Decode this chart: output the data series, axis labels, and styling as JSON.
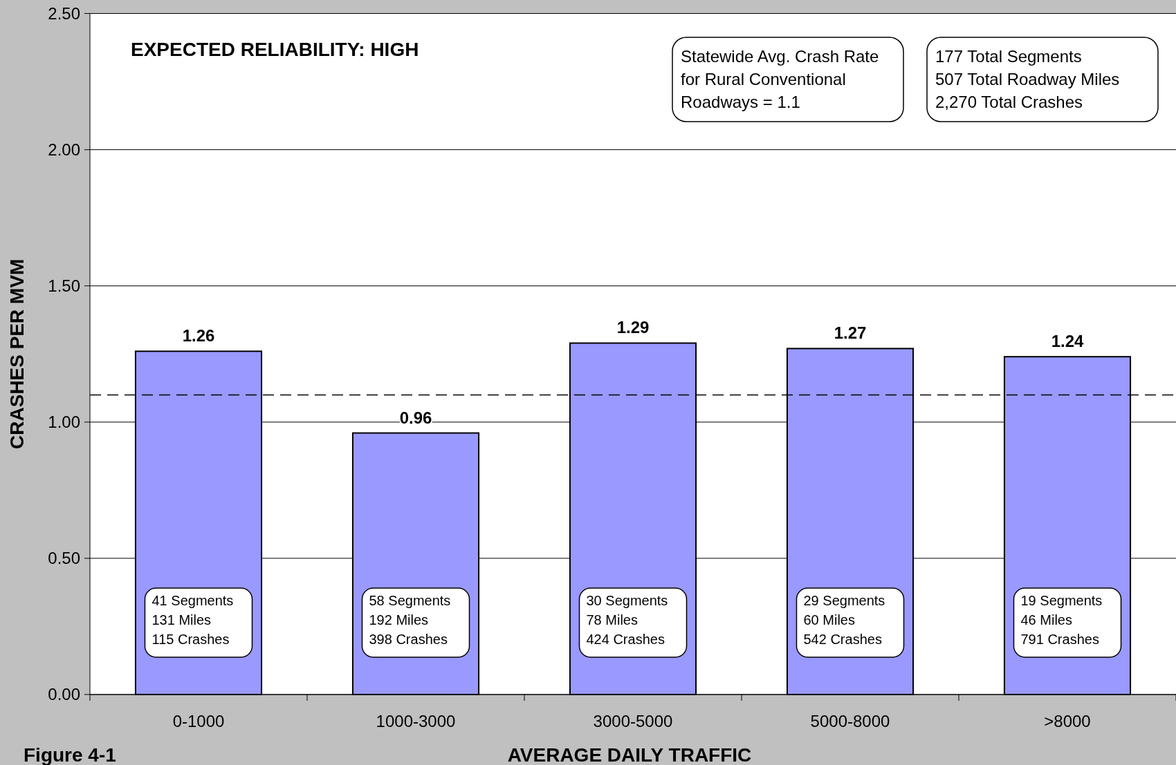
{
  "chart_data": {
    "type": "bar",
    "title": "EXPECTED RELIABILITY: HIGH",
    "xlabel": "AVERAGE DAILY TRAFFIC",
    "ylabel": "CRASHES PER MVM",
    "categories": [
      "0-1000",
      "1000-3000",
      "3000-5000",
      "5000-8000",
      ">8000"
    ],
    "values": [
      1.26,
      0.96,
      1.29,
      1.27,
      1.24
    ],
    "color": "#9999ff",
    "data_labels": true,
    "ylim": [
      0,
      2.5
    ],
    "yticks": [
      {
        "value": 0,
        "label": "0.00"
      },
      {
        "value": 0.5,
        "label": "0.50"
      },
      {
        "value": 1,
        "label": "1.00"
      },
      {
        "value": 1.5,
        "label": "1.50"
      },
      {
        "value": 2,
        "label": "2.00"
      },
      {
        "value": 2.5,
        "label": "2.50"
      }
    ],
    "grid": "y",
    "ref_lines": [
      {
        "axis": "y",
        "value": 1.1,
        "line_style": "dashed",
        "color": "#000000"
      }
    ],
    "annotations": [
      "Figure 4-1",
      "Statewide Avg. Crash Rate\nfor Rural Conventional\nRoadways = 1.1",
      "177 Total Segments\n507 Total Roadway Miles\n2,270 Total Crashes",
      "41 Segments\n131 Miles\n115 Crashes",
      "58 Segments\n192 Miles\n398 Crashes",
      "30 Segments\n78 Miles\n424 Crashes",
      "29 Segments\n60 Miles\n542 Crashes",
      "19 Segments\n46 Miles\n791 Crashes"
    ]
  }
}
